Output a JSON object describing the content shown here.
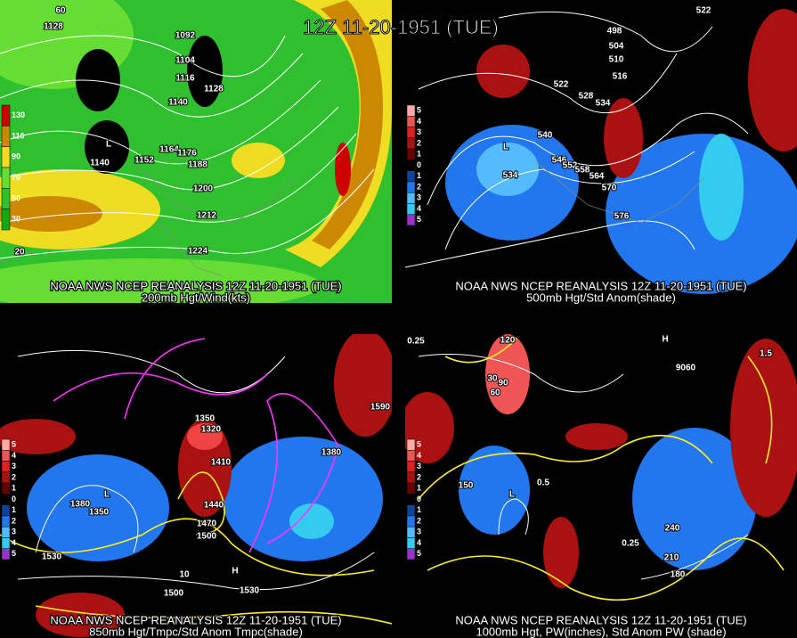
{
  "title": "12Z 11-20-1951 (TUE)",
  "panels": [
    {
      "caption": [
        "NOAA NWS NCEP REANALYSIS 12Z 11-20-1951 (TUE)",
        "200mb Hgt/Wind(kts)"
      ],
      "colorbar": [
        "130",
        "110",
        "90",
        "70",
        "50",
        "30"
      ],
      "labels": [
        "1128",
        "1092",
        "1104",
        "1116",
        "1128",
        "1140",
        "L",
        "1140",
        "1152",
        "1164",
        "1176",
        "1188",
        "1200",
        "1212",
        "1224",
        "60",
        "20"
      ]
    },
    {
      "caption": [
        "NOAA NWS NCEP REANALYSIS 12Z 11-20-1951 (TUE)",
        "500mb Hgt/Std Anom(shade)"
      ],
      "colorbar": [
        "5",
        "4",
        "3",
        "2",
        "1",
        "0",
        "1",
        "2",
        "3",
        "4",
        "5"
      ],
      "labels": [
        "522",
        "498",
        "504",
        "510",
        "516",
        "522",
        "528",
        "534",
        "540",
        "546",
        "552",
        "558",
        "564",
        "570",
        "576",
        "534",
        "L"
      ]
    },
    {
      "caption": [
        "NOAA NWS NCEP REANALYSIS 12Z 11-20-1951 (TUE)",
        "850mb Hgt/Tmpc/Std Anom Tmpc(shade)"
      ],
      "colorbar": [
        "5",
        "4",
        "3",
        "2",
        "1",
        "0",
        "1",
        "2",
        "3",
        "4",
        "5"
      ],
      "labels": [
        "1350",
        "1320",
        "1410",
        "1380",
        "1350",
        "1440",
        "1470",
        "1500",
        "1530",
        "1530",
        "1590",
        "1380",
        "1500",
        "10",
        "H",
        "L"
      ]
    },
    {
      "caption": [
        "NOAA NWS NCEP REANALYSIS 12Z 11-20-1951 (TUE)",
        "1000mb Hgt, PW(inches), Std Anom PW (shade)"
      ],
      "colorbar": [
        "5",
        "4",
        "3",
        "2",
        "1",
        "0",
        "1",
        "2",
        "3",
        "4",
        "5"
      ],
      "labels": [
        "0.25",
        "30",
        "60",
        "90",
        "120",
        "150",
        "180",
        "210",
        "240",
        "0.5",
        "0.25",
        "1.5",
        "9060",
        "H",
        "L"
      ]
    }
  ]
}
